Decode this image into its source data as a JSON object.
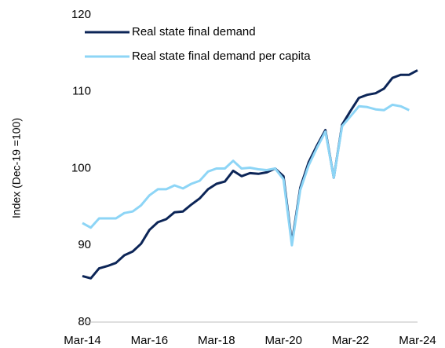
{
  "chart_data": {
    "type": "line",
    "ylabel": "Index (Dec-19 =100)",
    "categories": [
      "Mar-14",
      null,
      null,
      null,
      null,
      null,
      null,
      null,
      "Mar-16",
      null,
      null,
      null,
      null,
      null,
      null,
      null,
      "Mar-18",
      null,
      null,
      null,
      null,
      null,
      null,
      null,
      "Mar-20",
      null,
      null,
      null,
      null,
      null,
      null,
      null,
      "Mar-22",
      null,
      null,
      null,
      null,
      null,
      null,
      null,
      "Mar-24"
    ],
    "series": [
      {
        "name": "Real state final demand",
        "color": "#0c2557",
        "values": [
          86.0,
          85.7,
          87.0,
          87.3,
          87.7,
          88.7,
          89.2,
          90.2,
          92.0,
          93.0,
          93.4,
          94.3,
          94.4,
          95.3,
          96.1,
          97.3,
          98.0,
          98.3,
          99.7,
          99.0,
          99.4,
          99.3,
          99.5,
          100.0,
          99.0,
          90.3,
          97.5,
          100.8,
          103.0,
          105.0,
          98.8,
          105.7,
          107.5,
          109.2,
          109.6,
          109.8,
          110.4,
          111.8,
          112.2,
          112.2,
          112.8
        ]
      },
      {
        "name": "Real state final demand per capita",
        "color": "#8dd5f6",
        "values": [
          92.9,
          92.3,
          93.5,
          93.5,
          93.5,
          94.2,
          94.4,
          95.2,
          96.5,
          97.3,
          97.3,
          97.8,
          97.4,
          98.0,
          98.4,
          99.6,
          100.0,
          100.0,
          101.0,
          100.0,
          100.1,
          99.9,
          99.8,
          100.0,
          98.6,
          90.0,
          97.2,
          100.4,
          102.7,
          104.8,
          98.8,
          105.5,
          106.8,
          108.1,
          108.0,
          107.7,
          107.6,
          108.3,
          108.1,
          107.6,
          null
        ]
      }
    ],
    "ylim": [
      80,
      120
    ],
    "yticks": [
      80,
      90,
      100,
      110,
      120
    ],
    "legend": "upper left"
  }
}
